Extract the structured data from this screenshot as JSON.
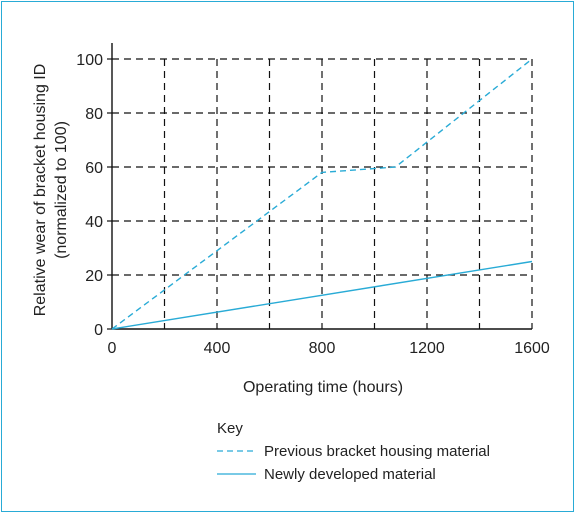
{
  "chart_data": {
    "type": "line",
    "xlabel": "Operating time (hours)",
    "ylabel_line1": "Relative wear of bracket housing ID",
    "ylabel_line2": "(normalized to 100)",
    "xlim": [
      0,
      1600
    ],
    "ylim": [
      0,
      100
    ],
    "x_ticks": [
      0,
      400,
      800,
      1200,
      1600
    ],
    "y_ticks": [
      0,
      20,
      40,
      60,
      80,
      100
    ],
    "grid_x": [
      200,
      400,
      600,
      800,
      1000,
      1200,
      1400,
      1600
    ],
    "grid_y": [
      20,
      40,
      60,
      80,
      100
    ],
    "grid": true,
    "legend_title": "Key",
    "legend_position": "bottom",
    "series": [
      {
        "name": "Previous bracket housing material",
        "style": "dashed",
        "color": "#29abd6",
        "x": [
          0,
          800,
          1080,
          1600
        ],
        "y": [
          0,
          58,
          60,
          100
        ]
      },
      {
        "name": "Newly developed material",
        "style": "solid",
        "color": "#29abd6",
        "x": [
          0,
          1600
        ],
        "y": [
          0,
          25
        ]
      }
    ]
  }
}
